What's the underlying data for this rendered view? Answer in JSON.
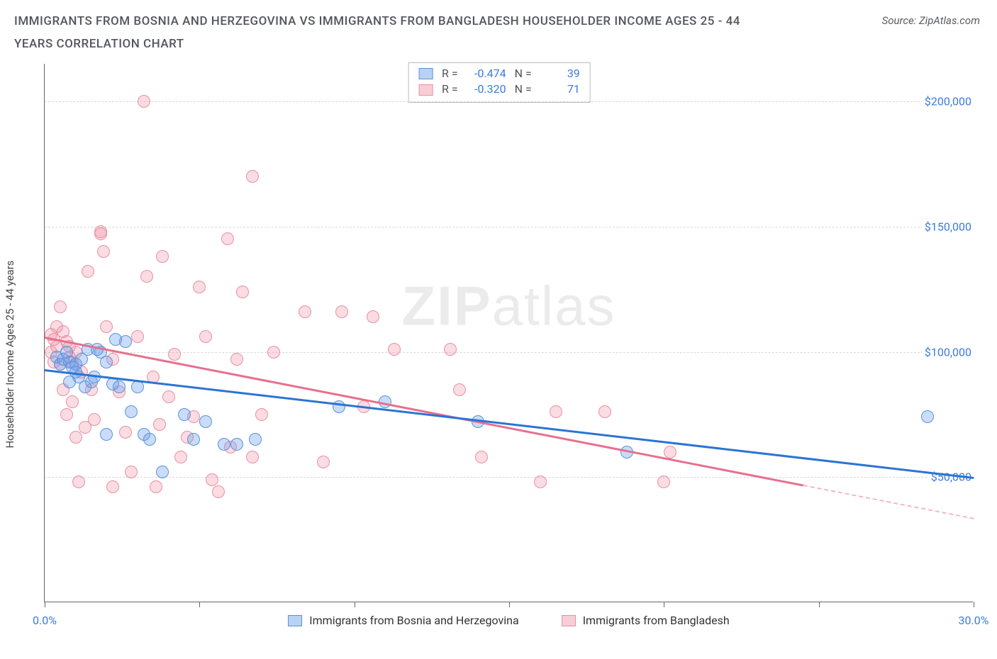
{
  "title": "IMMIGRANTS FROM BOSNIA AND HERZEGOVINA VS IMMIGRANTS FROM BANGLADESH HOUSEHOLDER INCOME AGES 25 - 44 YEARS CORRELATION CHART",
  "source": "Source: ZipAtlas.com",
  "ylabel": "Householder Income Ages 25 - 44 years",
  "watermark_1": "ZIP",
  "watermark_2": "atlas",
  "chart": {
    "type": "scatter",
    "background_color": "#ffffff",
    "grid_color": "#d8d8d8",
    "axis_color": "#666666",
    "xlim": [
      0,
      30
    ],
    "ylim": [
      0,
      215000
    ],
    "x_ticks": [
      0,
      5,
      10,
      15,
      20,
      25,
      30
    ],
    "x_tick_labels_shown": {
      "0": "0.0%",
      "30": "30.0%"
    },
    "y_ticks": [
      50000,
      100000,
      150000,
      200000
    ],
    "y_tick_labels": [
      "$50,000",
      "$100,000",
      "$150,000",
      "$200,000"
    ],
    "ylabel_fontsize": 15,
    "tick_label_color": "#3a7be0",
    "tick_fontsize": 16,
    "marker_radius": 9,
    "marker_opacity": 0.55,
    "line_width": 2.5
  },
  "series": {
    "a": {
      "label": "Immigrants from Bosnia and Herzegovina",
      "color_fill": "rgba(99,156,238,0.35)",
      "color_stroke": "#5a93da",
      "line_color": "#2b74d4",
      "swatch_fill": "#b9d2f4",
      "swatch_border": "#5a93da",
      "R": "-0.474",
      "N": "39",
      "trend": {
        "x1": 0,
        "y1": 93000,
        "x2": 30,
        "y2": 50000,
        "ext_x2": 30
      },
      "points": [
        [
          0.4,
          98000
        ],
        [
          0.5,
          95000
        ],
        [
          0.6,
          97000
        ],
        [
          0.7,
          100000
        ],
        [
          0.8,
          96000
        ],
        [
          0.8,
          88000
        ],
        [
          1.0,
          95000
        ],
        [
          1.0,
          92000
        ],
        [
          1.1,
          90000
        ],
        [
          1.2,
          97000
        ],
        [
          1.3,
          86000
        ],
        [
          1.4,
          101000
        ],
        [
          1.5,
          88000
        ],
        [
          1.6,
          90000
        ],
        [
          1.8,
          100000
        ],
        [
          2.0,
          96000
        ],
        [
          2.0,
          67000
        ],
        [
          2.2,
          87000
        ],
        [
          2.4,
          86000
        ],
        [
          2.6,
          104000
        ],
        [
          2.8,
          76000
        ],
        [
          3.0,
          86000
        ],
        [
          3.2,
          67000
        ],
        [
          3.4,
          65000
        ],
        [
          3.8,
          52000
        ],
        [
          4.5,
          75000
        ],
        [
          4.8,
          65000
        ],
        [
          5.2,
          72000
        ],
        [
          5.8,
          63000
        ],
        [
          6.2,
          63000
        ],
        [
          6.8,
          65000
        ],
        [
          9.5,
          78000
        ],
        [
          11.0,
          80000
        ],
        [
          14.0,
          72000
        ],
        [
          18.8,
          60000
        ],
        [
          28.5,
          74000
        ],
        [
          2.3,
          105000
        ],
        [
          1.7,
          101000
        ],
        [
          0.9,
          94000
        ]
      ]
    },
    "b": {
      "label": "Immigrants from Bangladesh",
      "color_fill": "rgba(240,140,160,0.30)",
      "color_stroke": "#e890a4",
      "line_color": "#e86f8e",
      "swatch_fill": "#f7cdd6",
      "swatch_border": "#e890a4",
      "R": "-0.320",
      "N": "71",
      "trend": {
        "x1": 0,
        "y1": 106000,
        "x2": 24.5,
        "y2": 47000,
        "ext_x2": 30
      },
      "points": [
        [
          0.2,
          107000
        ],
        [
          0.2,
          100000
        ],
        [
          0.3,
          105000
        ],
        [
          0.3,
          96000
        ],
        [
          0.4,
          110000
        ],
        [
          0.4,
          102000
        ],
        [
          0.5,
          95000
        ],
        [
          0.5,
          118000
        ],
        [
          0.6,
          108000
        ],
        [
          0.6,
          85000
        ],
        [
          0.7,
          104000
        ],
        [
          0.7,
          75000
        ],
        [
          0.8,
          102000
        ],
        [
          0.8,
          98000
        ],
        [
          0.9,
          96000
        ],
        [
          0.9,
          80000
        ],
        [
          1.0,
          100000
        ],
        [
          1.0,
          66000
        ],
        [
          1.1,
          48000
        ],
        [
          1.2,
          92000
        ],
        [
          1.3,
          70000
        ],
        [
          1.4,
          132000
        ],
        [
          1.5,
          85000
        ],
        [
          1.6,
          73000
        ],
        [
          1.8,
          148000
        ],
        [
          1.8,
          147000
        ],
        [
          1.9,
          140000
        ],
        [
          2.0,
          110000
        ],
        [
          2.2,
          97000
        ],
        [
          2.2,
          46000
        ],
        [
          2.4,
          84000
        ],
        [
          2.6,
          68000
        ],
        [
          2.8,
          52000
        ],
        [
          3.0,
          106000
        ],
        [
          3.2,
          200000
        ],
        [
          3.3,
          130000
        ],
        [
          3.5,
          90000
        ],
        [
          3.6,
          46000
        ],
        [
          3.7,
          71000
        ],
        [
          3.8,
          138000
        ],
        [
          4.0,
          82000
        ],
        [
          4.2,
          99000
        ],
        [
          4.4,
          58000
        ],
        [
          4.6,
          66000
        ],
        [
          4.8,
          74000
        ],
        [
          5.0,
          126000
        ],
        [
          5.2,
          106000
        ],
        [
          5.4,
          49000
        ],
        [
          5.6,
          44000
        ],
        [
          5.9,
          145000
        ],
        [
          6.0,
          62000
        ],
        [
          6.2,
          97000
        ],
        [
          6.4,
          124000
        ],
        [
          6.7,
          170000
        ],
        [
          6.7,
          58000
        ],
        [
          7.0,
          75000
        ],
        [
          7.4,
          100000
        ],
        [
          8.4,
          116000
        ],
        [
          9.0,
          56000
        ],
        [
          9.6,
          116000
        ],
        [
          10.3,
          78000
        ],
        [
          10.6,
          114000
        ],
        [
          11.3,
          101000
        ],
        [
          13.1,
          101000
        ],
        [
          13.4,
          85000
        ],
        [
          14.1,
          58000
        ],
        [
          16.0,
          48000
        ],
        [
          16.5,
          76000
        ],
        [
          18.1,
          76000
        ],
        [
          20.0,
          48000
        ],
        [
          20.2,
          60000
        ]
      ]
    }
  },
  "top_legend": {
    "r_key": "R =",
    "n_key": "N ="
  }
}
